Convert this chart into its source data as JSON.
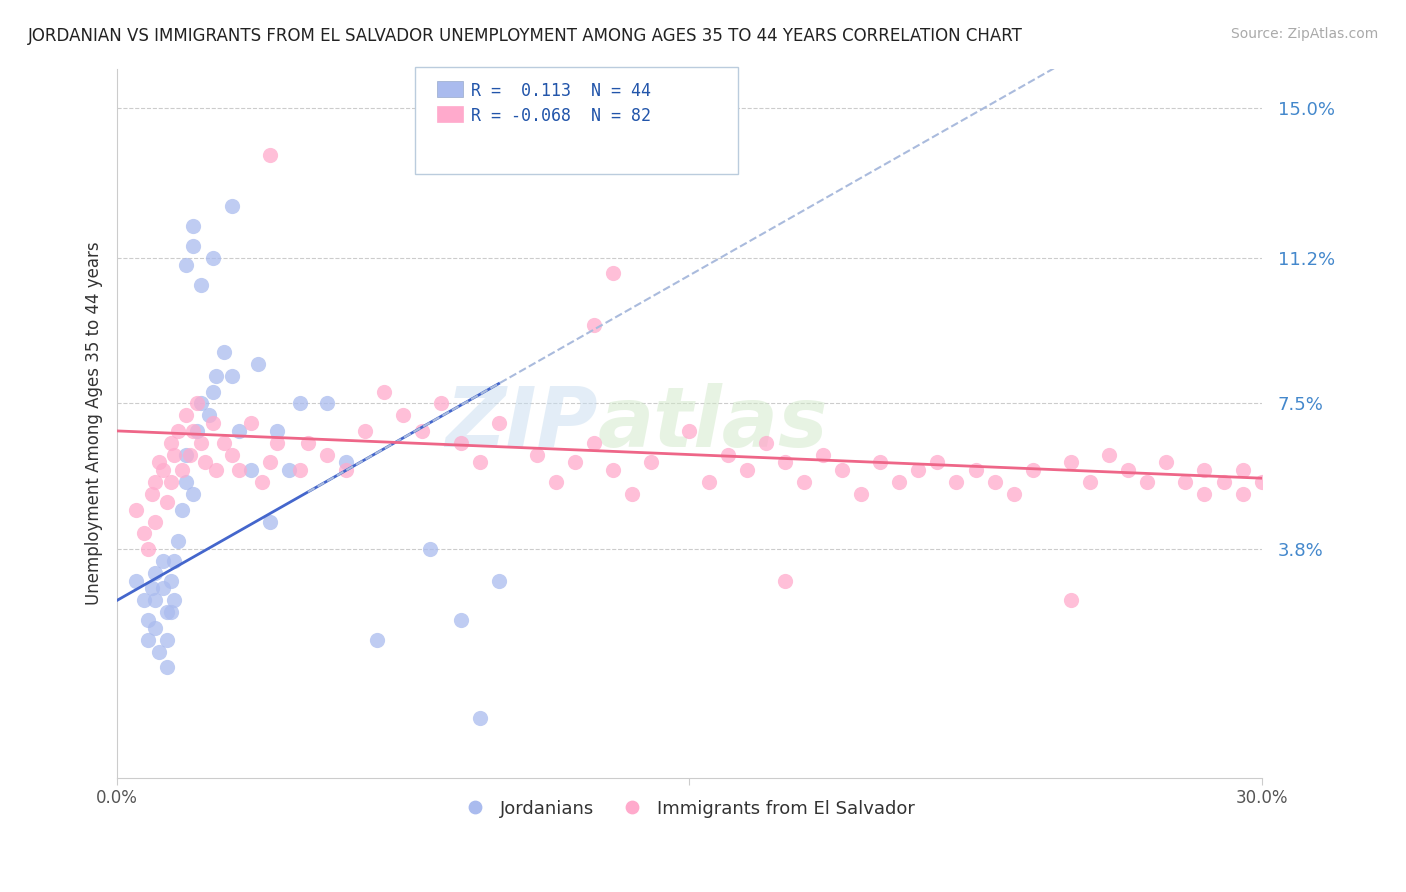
{
  "title": "JORDANIAN VS IMMIGRANTS FROM EL SALVADOR UNEMPLOYMENT AMONG AGES 35 TO 44 YEARS CORRELATION CHART",
  "source": "Source: ZipAtlas.com",
  "ylabel": "Unemployment Among Ages 35 to 44 years",
  "xlim": [
    0.0,
    0.3
  ],
  "ylim": [
    -0.02,
    0.16
  ],
  "ytick_labels": [
    "3.8%",
    "7.5%",
    "11.2%",
    "15.0%"
  ],
  "ytick_values": [
    0.038,
    0.075,
    0.112,
    0.15
  ],
  "gridline_color": "#cccccc",
  "background_color": "#ffffff",
  "jordanian_color": "#aabbee",
  "salvador_color": "#ffaacc",
  "trend_blue_color": "#4466cc",
  "trend_blue_dashed_color": "#aabbdd",
  "trend_pink_color": "#ee6688",
  "legend_R1": "0.113",
  "legend_N1": "44",
  "legend_R2": "-0.068",
  "legend_N2": "82",
  "watermark_zip": "ZIP",
  "watermark_atlas": "atlas",
  "jordanian_x": [
    0.005,
    0.007,
    0.008,
    0.008,
    0.009,
    0.01,
    0.01,
    0.01,
    0.011,
    0.012,
    0.012,
    0.013,
    0.013,
    0.013,
    0.014,
    0.014,
    0.015,
    0.015,
    0.016,
    0.017,
    0.018,
    0.018,
    0.02,
    0.021,
    0.022,
    0.024,
    0.025,
    0.026,
    0.028,
    0.03,
    0.032,
    0.035,
    0.037,
    0.04,
    0.042,
    0.045,
    0.048,
    0.055,
    0.06,
    0.068,
    0.082,
    0.09,
    0.095,
    0.1
  ],
  "jordanian_y": [
    0.03,
    0.025,
    0.02,
    0.015,
    0.028,
    0.032,
    0.025,
    0.018,
    0.012,
    0.035,
    0.028,
    0.022,
    0.015,
    0.008,
    0.03,
    0.022,
    0.035,
    0.025,
    0.04,
    0.048,
    0.055,
    0.062,
    0.052,
    0.068,
    0.075,
    0.072,
    0.078,
    0.082,
    0.088,
    0.082,
    0.068,
    0.058,
    0.085,
    0.045,
    0.068,
    0.058,
    0.075,
    0.075,
    0.06,
    0.015,
    0.038,
    0.02,
    -0.005,
    0.03
  ],
  "salvador_x": [
    0.005,
    0.007,
    0.008,
    0.009,
    0.01,
    0.01,
    0.011,
    0.012,
    0.013,
    0.014,
    0.014,
    0.015,
    0.016,
    0.017,
    0.018,
    0.019,
    0.02,
    0.021,
    0.022,
    0.023,
    0.025,
    0.026,
    0.028,
    0.03,
    0.032,
    0.035,
    0.038,
    0.04,
    0.042,
    0.048,
    0.05,
    0.055,
    0.06,
    0.065,
    0.07,
    0.075,
    0.08,
    0.085,
    0.09,
    0.095,
    0.1,
    0.11,
    0.115,
    0.12,
    0.125,
    0.13,
    0.135,
    0.14,
    0.15,
    0.155,
    0.16,
    0.165,
    0.17,
    0.175,
    0.18,
    0.185,
    0.19,
    0.195,
    0.2,
    0.205,
    0.21,
    0.215,
    0.22,
    0.225,
    0.23,
    0.235,
    0.24,
    0.25,
    0.255,
    0.26,
    0.265,
    0.27,
    0.275,
    0.28,
    0.285,
    0.285,
    0.29,
    0.295,
    0.295,
    0.3,
    0.175,
    0.25
  ],
  "salvador_y": [
    0.048,
    0.042,
    0.038,
    0.052,
    0.055,
    0.045,
    0.06,
    0.058,
    0.05,
    0.065,
    0.055,
    0.062,
    0.068,
    0.058,
    0.072,
    0.062,
    0.068,
    0.075,
    0.065,
    0.06,
    0.07,
    0.058,
    0.065,
    0.062,
    0.058,
    0.07,
    0.055,
    0.06,
    0.065,
    0.058,
    0.065,
    0.062,
    0.058,
    0.068,
    0.078,
    0.072,
    0.068,
    0.075,
    0.065,
    0.06,
    0.07,
    0.062,
    0.055,
    0.06,
    0.065,
    0.058,
    0.052,
    0.06,
    0.068,
    0.055,
    0.062,
    0.058,
    0.065,
    0.06,
    0.055,
    0.062,
    0.058,
    0.052,
    0.06,
    0.055,
    0.058,
    0.06,
    0.055,
    0.058,
    0.055,
    0.052,
    0.058,
    0.06,
    0.055,
    0.062,
    0.058,
    0.055,
    0.06,
    0.055,
    0.058,
    0.052,
    0.055,
    0.058,
    0.052,
    0.055,
    0.03,
    0.025
  ],
  "jx_high": [
    0.018,
    0.02,
    0.02,
    0.022,
    0.025,
    0.03
  ],
  "jy_high": [
    0.11,
    0.12,
    0.115,
    0.105,
    0.112,
    0.125
  ],
  "sx_high": [
    0.04,
    0.125,
    0.13
  ],
  "sy_high": [
    0.138,
    0.095,
    0.108
  ]
}
